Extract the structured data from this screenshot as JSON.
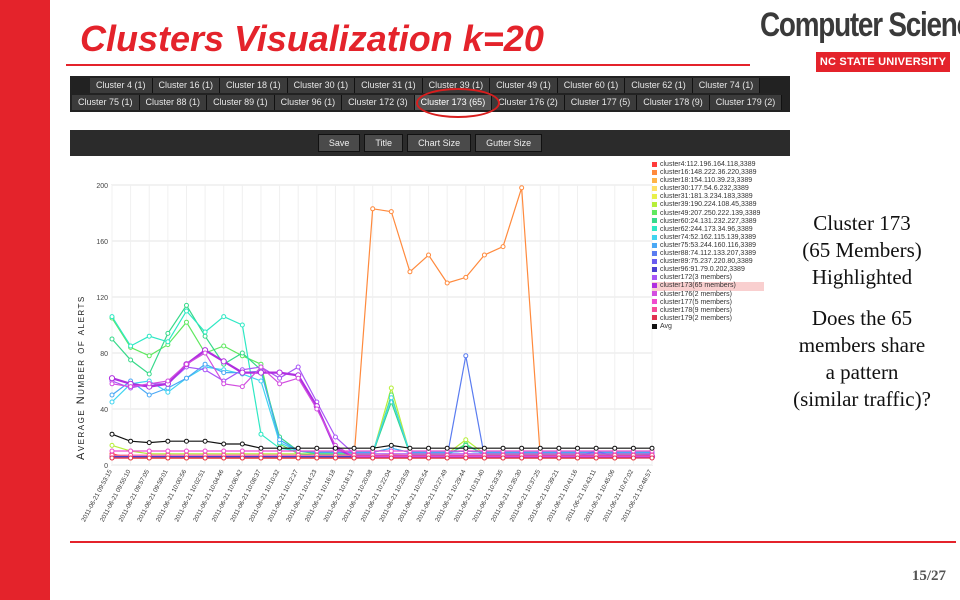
{
  "slide": {
    "title": "Clusters Visualization k=20",
    "page_number": "15/27",
    "accent_color": "#e4232b"
  },
  "logo": {
    "top": "Computer Science",
    "bottom": "NC STATE UNIVERSITY"
  },
  "tabs": {
    "row1": [
      "Cluster 4 (1)",
      "Cluster 16 (1)",
      "Cluster 18 (1)",
      "Cluster 30 (1)",
      "Cluster 31 (1)",
      "Cluster 39 (1)",
      "Cluster 49 (1)",
      "Cluster 60 (1)",
      "Cluster 62 (1)",
      "Cluster 74 (1)"
    ],
    "row2": [
      "Cluster 75 (1)",
      "Cluster 88 (1)",
      "Cluster 89 (1)",
      "Cluster 96 (1)",
      "Cluster 172 (3)",
      "Cluster 173 (65)",
      "Cluster 176 (2)",
      "Cluster 177 (5)",
      "Cluster 178 (9)",
      "Cluster 179 (2)"
    ],
    "highlighted": "Cluster 173 (65)"
  },
  "toolbar": [
    "Save",
    "Title",
    "Chart Size",
    "Gutter Size"
  ],
  "side_text": {
    "lines1": [
      "Cluster 173",
      "(65 Members)",
      "Highlighted"
    ],
    "lines2": [
      "Does the 65",
      "members share",
      "a pattern",
      "(similar traffic)?"
    ]
  },
  "chart_data": {
    "type": "line",
    "ylabel": "Average Number of alerts",
    "ylim": [
      0,
      200
    ],
    "yticks": [
      0,
      40,
      80,
      120,
      160,
      200
    ],
    "grid": true,
    "legend_position": "right",
    "x": [
      "2011-06-21 09:53:15",
      "2011-06-21 09:55:10",
      "2011-06-21 09:57:05",
      "2011-06-21 09:59:01",
      "2011-06-21 10:00:56",
      "2011-06-21 10:02:51",
      "2011-06-21 10:04:46",
      "2011-06-21 10:06:42",
      "2011-06-21 10:08:37",
      "2011-06-21 10:10:32",
      "2011-06-21 10:12:27",
      "2011-06-21 10:14:23",
      "2011-06-21 10:16:18",
      "2011-06-21 10:18:13",
      "2011-06-21 10:20:08",
      "2011-06-21 10:22:04",
      "2011-06-21 10:23:59",
      "2011-06-21 10:25:54",
      "2011-06-21 10:27:49",
      "2011-06-21 10:29:44",
      "2011-06-21 10:31:40",
      "2011-06-21 10:33:35",
      "2011-06-21 10:35:30",
      "2011-06-21 10:37:25",
      "2011-06-21 10:39:21",
      "2011-06-21 10:41:16",
      "2011-06-21 10:43:11",
      "2011-06-21 10:45:06",
      "2011-06-21 10:47:02",
      "2011-06-21 10:48:57"
    ],
    "series": [
      {
        "name": "cluster4:112.196.164.118,3389",
        "color": "#ff3b3b",
        "values": [
          8,
          5,
          5,
          5,
          5,
          5,
          5,
          5,
          5,
          5,
          5,
          5,
          5,
          5,
          5,
          5,
          5,
          5,
          5,
          5,
          5,
          5,
          5,
          5,
          5,
          5,
          5,
          5,
          5,
          6
        ]
      },
      {
        "name": "cluster16:148.222.36.220,3389",
        "color": "#ff8a3d",
        "values": [
          5,
          5,
          5,
          5,
          5,
          5,
          5,
          5,
          5,
          5,
          5,
          5,
          5,
          5,
          183,
          181,
          138,
          150,
          130,
          134,
          150,
          156,
          198,
          6,
          5,
          5,
          5,
          5,
          5,
          6
        ]
      },
      {
        "name": "cluster18:154.110.39.23,3389",
        "color": "#ffb347",
        "values": [
          6,
          5,
          5,
          5,
          5,
          5,
          5,
          5,
          5,
          5,
          5,
          5,
          5,
          5,
          5,
          5,
          5,
          5,
          5,
          5,
          5,
          5,
          5,
          5,
          5,
          5,
          5,
          5,
          5,
          6
        ]
      },
      {
        "name": "cluster30:177.54.6.232,3389",
        "color": "#ffe066",
        "values": [
          6,
          5,
          5,
          5,
          5,
          5,
          5,
          5,
          5,
          5,
          5,
          5,
          5,
          5,
          5,
          5,
          5,
          5,
          5,
          5,
          5,
          5,
          5,
          5,
          5,
          5,
          5,
          5,
          5,
          6
        ]
      },
      {
        "name": "cluster31:181.3.234.183,3389",
        "color": "#e8f04a",
        "values": [
          7,
          6,
          6,
          6,
          6,
          6,
          6,
          6,
          6,
          6,
          6,
          6,
          6,
          6,
          6,
          8,
          6,
          6,
          6,
          6,
          6,
          6,
          6,
          6,
          6,
          6,
          6,
          6,
          6,
          7
        ]
      },
      {
        "name": "cluster39:190.224.108.45,3389",
        "color": "#b6ee3a",
        "values": [
          14,
          10,
          8,
          8,
          8,
          8,
          8,
          8,
          8,
          8,
          8,
          8,
          8,
          8,
          8,
          55,
          8,
          8,
          8,
          18,
          8,
          8,
          8,
          8,
          8,
          8,
          8,
          8,
          8,
          8
        ]
      },
      {
        "name": "cluster49:207.250.222.139,3389",
        "color": "#5fe85f",
        "values": [
          105,
          84,
          78,
          86,
          102,
          80,
          85,
          78,
          72,
          15,
          8,
          7,
          7,
          7,
          7,
          50,
          7,
          7,
          7,
          15,
          7,
          7,
          7,
          7,
          7,
          7,
          7,
          7,
          7,
          8
        ]
      },
      {
        "name": "cluster60:24.131.232.227,3389",
        "color": "#37d98a",
        "values": [
          90,
          75,
          65,
          94,
          114,
          92,
          72,
          80,
          68,
          20,
          10,
          8,
          8,
          8,
          8,
          45,
          8,
          8,
          8,
          14,
          8,
          8,
          8,
          8,
          8,
          8,
          8,
          8,
          8,
          8
        ]
      },
      {
        "name": "cluster62:244.173.34.96,3389",
        "color": "#2ee8c4",
        "values": [
          106,
          85,
          92,
          88,
          110,
          95,
          106,
          100,
          22,
          12,
          10,
          9,
          9,
          9,
          9,
          12,
          9,
          9,
          9,
          10,
          9,
          9,
          9,
          9,
          9,
          9,
          9,
          9,
          9,
          9
        ]
      },
      {
        "name": "cluster74:52.162.115.139,3389",
        "color": "#40d4f0",
        "values": [
          45,
          58,
          60,
          52,
          62,
          70,
          68,
          65,
          60,
          16,
          10,
          9,
          9,
          9,
          9,
          48,
          9,
          9,
          9,
          10,
          9,
          9,
          9,
          9,
          9,
          9,
          9,
          9,
          9,
          9
        ]
      },
      {
        "name": "cluster75:53.244.160.116,3389",
        "color": "#4aa8f5",
        "values": [
          50,
          60,
          50,
          55,
          62,
          72,
          66,
          66,
          67,
          18,
          10,
          9,
          9,
          9,
          9,
          12,
          9,
          9,
          9,
          10,
          9,
          9,
          9,
          9,
          9,
          9,
          9,
          9,
          9,
          9
        ]
      },
      {
        "name": "cluster88:74.112.133.207,3389",
        "color": "#5a7cf0",
        "values": [
          6,
          6,
          6,
          6,
          6,
          6,
          6,
          6,
          6,
          6,
          6,
          6,
          6,
          6,
          6,
          6,
          6,
          6,
          6,
          78,
          6,
          6,
          6,
          6,
          6,
          6,
          10,
          6,
          6,
          8
        ]
      },
      {
        "name": "cluster89:75.237.220.80,3389",
        "color": "#6a5cf0",
        "values": [
          6,
          6,
          6,
          6,
          6,
          6,
          6,
          6,
          6,
          6,
          6,
          6,
          6,
          6,
          6,
          6,
          6,
          6,
          6,
          6,
          6,
          6,
          6,
          6,
          6,
          6,
          6,
          6,
          6,
          6
        ]
      },
      {
        "name": "cluster96:91.79.0.202,3389",
        "color": "#4a3fd0",
        "values": [
          6,
          6,
          6,
          6,
          6,
          6,
          6,
          6,
          6,
          6,
          6,
          6,
          6,
          6,
          6,
          6,
          6,
          6,
          6,
          6,
          6,
          6,
          6,
          6,
          6,
          6,
          6,
          6,
          6,
          6
        ]
      },
      {
        "name": "cluster172(3 members)",
        "color": "#a855f7",
        "values": [
          60,
          55,
          58,
          58,
          70,
          68,
          60,
          68,
          70,
          62,
          70,
          45,
          20,
          8,
          8,
          8,
          8,
          8,
          8,
          8,
          8,
          8,
          8,
          8,
          8,
          8,
          8,
          8,
          8,
          8
        ]
      },
      {
        "name": "cluster173(65 members)",
        "color": "#b02fe0",
        "values": [
          62,
          58,
          56,
          58,
          72,
          82,
          74,
          66,
          66,
          66,
          64,
          42,
          12,
          6,
          6,
          6,
          6,
          6,
          6,
          6,
          6,
          6,
          6,
          6,
          6,
          6,
          6,
          6,
          6,
          6
        ]
      },
      {
        "name": "cluster176(2 members)",
        "color": "#d24ee0",
        "values": [
          58,
          56,
          58,
          60,
          72,
          80,
          58,
          56,
          70,
          58,
          62,
          40,
          14,
          6,
          6,
          6,
          6,
          6,
          6,
          6,
          6,
          6,
          6,
          6,
          6,
          6,
          6,
          6,
          6,
          6
        ]
      },
      {
        "name": "cluster177(5 members)",
        "color": "#f04ccf",
        "values": [
          10,
          10,
          10,
          10,
          10,
          10,
          10,
          10,
          10,
          10,
          10,
          10,
          10,
          10,
          10,
          10,
          10,
          10,
          10,
          10,
          10,
          10,
          10,
          10,
          10,
          10,
          10,
          10,
          10,
          10
        ]
      },
      {
        "name": "cluster178(9 members)",
        "color": "#f64c9a",
        "values": [
          7,
          7,
          7,
          7,
          7,
          7,
          7,
          7,
          7,
          7,
          7,
          7,
          7,
          7,
          7,
          7,
          7,
          7,
          7,
          7,
          7,
          7,
          7,
          7,
          7,
          7,
          7,
          7,
          7,
          7
        ]
      },
      {
        "name": "cluster179(2 members)",
        "color": "#e0304f",
        "values": [
          5,
          5,
          5,
          5,
          5,
          5,
          5,
          5,
          5,
          5,
          5,
          5,
          5,
          5,
          5,
          5,
          5,
          5,
          5,
          5,
          5,
          5,
          5,
          5,
          5,
          5,
          5,
          5,
          5,
          5
        ]
      },
      {
        "name": "Avg",
        "color": "#111111",
        "values": [
          22,
          17,
          16,
          17,
          17,
          17,
          15,
          15,
          12,
          12,
          12,
          12,
          12,
          12,
          12,
          14,
          12,
          12,
          12,
          12,
          12,
          12,
          12,
          12,
          12,
          12,
          12,
          12,
          12,
          12
        ]
      }
    ],
    "highlighted_series": "cluster173(65 members)"
  }
}
